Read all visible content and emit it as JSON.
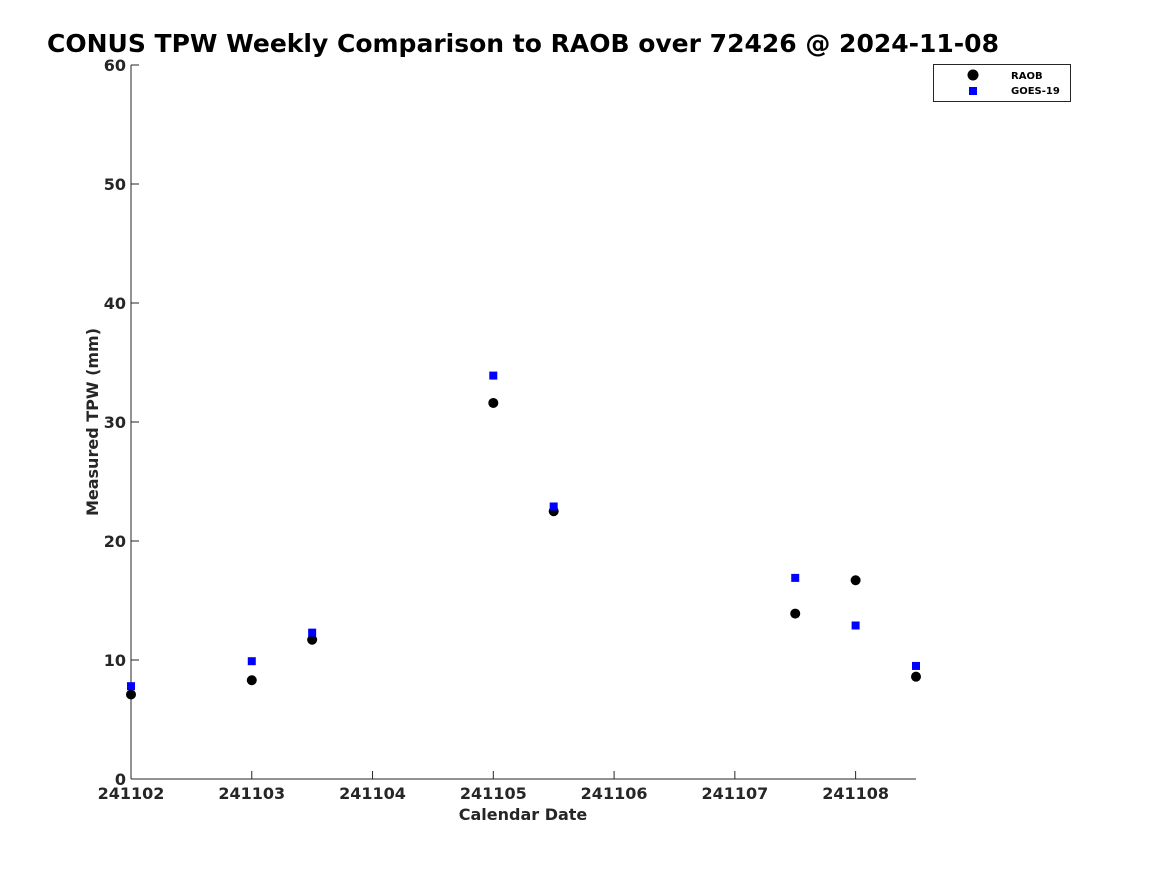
{
  "chart_data": {
    "type": "scatter",
    "title": "CONUS TPW Weekly Comparison to RAOB over 72426 @ 2024-11-08",
    "xlabel": "Calendar Date",
    "ylabel": "Measured TPW (mm)",
    "xlim": [
      0,
      6.5
    ],
    "ylim": [
      0,
      60
    ],
    "x_ticks": [
      0,
      1,
      2,
      3,
      4,
      5,
      6
    ],
    "x_tick_labels": [
      "241102",
      "241103",
      "241104",
      "241105",
      "241106",
      "241107",
      "241108"
    ],
    "y_ticks": [
      0,
      10,
      20,
      30,
      40,
      50,
      60
    ],
    "y_tick_labels": [
      "0",
      "10",
      "20",
      "30",
      "40",
      "50",
      "60"
    ],
    "grid": false,
    "legend_position": "top-right",
    "series": [
      {
        "name": "RAOB",
        "marker": "circle",
        "color": "#000000",
        "x": [
          0,
          1,
          1.5,
          3,
          3.5,
          5.5,
          6,
          6.5
        ],
        "y": [
          7.1,
          8.3,
          11.7,
          31.6,
          22.5,
          13.9,
          16.7,
          8.6
        ]
      },
      {
        "name": "GOES-19",
        "marker": "square",
        "color": "#0000ff",
        "x": [
          0,
          1,
          1.5,
          3,
          3.5,
          5.5,
          6,
          6.5
        ],
        "y": [
          7.8,
          9.9,
          12.3,
          33.9,
          22.9,
          16.9,
          12.9,
          9.5
        ]
      }
    ]
  }
}
